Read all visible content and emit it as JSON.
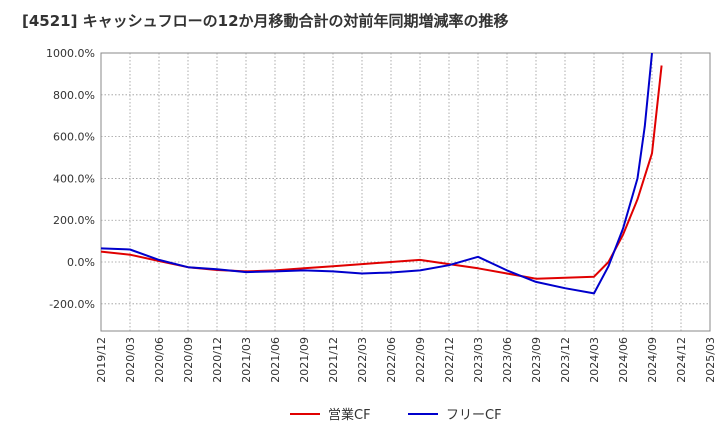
{
  "chart_data": {
    "type": "line",
    "title": "[4521]  キャッシュフローの12か月移動合計の対前年同期増減率の推移",
    "xlabel": "",
    "ylabel": "",
    "ylim": [
      -330,
      1000
    ],
    "y_ticks": [
      -200,
      0,
      200,
      400,
      600,
      800,
      1000
    ],
    "y_tick_labels": [
      "-200.0%",
      "0.0%",
      "200.0%",
      "400.0%",
      "600.0%",
      "800.0%",
      "1000.0%"
    ],
    "x_tick_labels": [
      "2019/12",
      "2020/03",
      "2020/06",
      "2020/09",
      "2020/12",
      "2021/03",
      "2021/06",
      "2021/09",
      "2021/12",
      "2022/03",
      "2022/06",
      "2022/09",
      "2022/12",
      "2023/03",
      "2023/06",
      "2023/09",
      "2023/12",
      "2024/03",
      "2024/06",
      "2024/09",
      "2024/12",
      "2025/03"
    ],
    "grid": true,
    "legend_position": "bottom",
    "series": [
      {
        "name": "営業CF",
        "color": "#e00000",
        "x": [
          0,
          1,
          2,
          3,
          4,
          5,
          6,
          7,
          8,
          9,
          10,
          11,
          12,
          13,
          14,
          15,
          16,
          17,
          17.5,
          18,
          18.5,
          19,
          19.33
        ],
        "values": [
          50,
          35,
          5,
          -25,
          -38,
          -45,
          -40,
          -30,
          -20,
          -10,
          0,
          10,
          -10,
          -30,
          -55,
          -80,
          -75,
          -70,
          0,
          130,
          300,
          520,
          940
        ]
      },
      {
        "name": "フリーCF",
        "color": "#0000cc",
        "x": [
          0,
          1,
          2,
          3,
          4,
          5,
          6,
          7,
          8,
          9,
          10,
          11,
          12,
          13,
          14,
          15,
          16,
          17,
          17.5,
          18,
          18.5,
          18.75,
          19
        ],
        "values": [
          65,
          60,
          10,
          -25,
          -35,
          -48,
          -45,
          -40,
          -45,
          -55,
          -50,
          -40,
          -15,
          25,
          -40,
          -95,
          -125,
          -150,
          -20,
          160,
          400,
          650,
          1000
        ]
      }
    ]
  }
}
